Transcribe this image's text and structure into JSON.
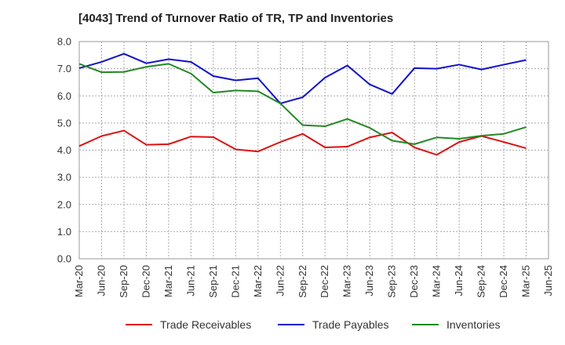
{
  "chart_data": {
    "type": "line",
    "title": "[4043]  Trend of Turnover Ratio of TR, TP and Inventories",
    "xlabel": "",
    "ylabel": "",
    "ylim": [
      0,
      8
    ],
    "yticks": [
      "0.0",
      "1.0",
      "2.0",
      "3.0",
      "4.0",
      "5.0",
      "6.0",
      "7.0",
      "8.0"
    ],
    "x_tick_labels": [
      "Mar-20",
      "Jun-20",
      "Sep-20",
      "Dec-20",
      "Mar-21",
      "Jun-21",
      "Sep-21",
      "Dec-21",
      "Mar-22",
      "Jun-22",
      "Sep-22",
      "Dec-22",
      "Mar-23",
      "Jun-23",
      "Sep-23",
      "Dec-23",
      "Mar-24",
      "Jun-24",
      "Sep-24",
      "Dec-24",
      "Mar-25",
      "Jun-25"
    ],
    "categories": [
      "Mar-20",
      "Jun-20",
      "Sep-20",
      "Dec-20",
      "Mar-21",
      "Jun-21",
      "Sep-21",
      "Dec-21",
      "Mar-22",
      "Jun-22",
      "Sep-22",
      "Dec-22",
      "Mar-23",
      "Jun-23",
      "Sep-23",
      "Dec-23",
      "Mar-24",
      "Jun-24",
      "Sep-24",
      "Dec-24",
      "Mar-25"
    ],
    "grid": true,
    "legend_position": "bottom",
    "series": [
      {
        "name": "Trade Receivables",
        "color": "#dd1111",
        "values": [
          4.15,
          4.52,
          4.72,
          4.2,
          4.22,
          4.5,
          4.48,
          4.03,
          3.95,
          4.3,
          4.6,
          4.1,
          4.13,
          4.47,
          4.65,
          4.1,
          3.83,
          4.3,
          4.52,
          4.3,
          4.07
        ]
      },
      {
        "name": "Trade Payables",
        "color": "#1111cc",
        "values": [
          7.02,
          7.25,
          7.55,
          7.2,
          7.35,
          7.25,
          6.73,
          6.57,
          6.65,
          5.72,
          5.95,
          6.67,
          7.12,
          6.42,
          6.07,
          7.02,
          7.0,
          7.15,
          6.97,
          7.15,
          7.32
        ]
      },
      {
        "name": "Inventories",
        "color": "#228822",
        "values": [
          7.18,
          6.87,
          6.88,
          7.07,
          7.18,
          6.82,
          6.12,
          6.2,
          6.17,
          5.72,
          4.92,
          4.88,
          5.15,
          4.82,
          4.35,
          4.22,
          4.47,
          4.42,
          4.53,
          4.6,
          4.85
        ]
      }
    ]
  }
}
